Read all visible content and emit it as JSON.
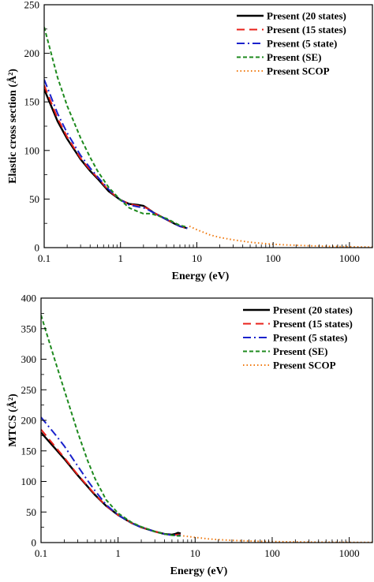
{
  "chart_data": [
    {
      "type": "line",
      "title": "",
      "xlabel": "Energy (eV)",
      "ylabel": "Elastic cross section (Å²)",
      "x_scale": "log",
      "xlim": [
        0.1,
        2000
      ],
      "ylim": [
        0,
        250
      ],
      "x_ticks": [
        0.1,
        1,
        10,
        100,
        1000
      ],
      "x_tick_labels": [
        "0.1",
        "1",
        "10",
        "100",
        "1000"
      ],
      "y_ticks": [
        0,
        50,
        100,
        150,
        200,
        250
      ],
      "y_tick_labels": [
        "0",
        "50",
        "100",
        "150",
        "200",
        "250"
      ],
      "legend_position": "top-right",
      "series": [
        {
          "name": "Present (20 states)",
          "color": "#000000",
          "dash": "solid",
          "x": [
            0.1,
            0.15,
            0.2,
            0.3,
            0.4,
            0.5,
            0.7,
            1.0,
            1.3,
            1.7,
            2.0,
            2.3,
            2.7,
            3.2,
            4.0,
            5.0,
            6.0,
            7.5
          ],
          "y": [
            163,
            130,
            112,
            91,
            79,
            71,
            58,
            49,
            45,
            44,
            43,
            40,
            36,
            33,
            29,
            25,
            22,
            20
          ]
        },
        {
          "name": "Present (15 states)",
          "color": "#e8201a",
          "dash": "dash",
          "x": [
            0.1,
            0.15,
            0.2,
            0.3,
            0.4,
            0.5,
            0.7,
            1.0,
            1.3,
            1.7,
            2.0,
            2.3,
            2.7,
            3.2,
            4.0,
            5.0,
            6.0,
            7.5
          ],
          "y": [
            167,
            133,
            114,
            92,
            80,
            72,
            59,
            49,
            45,
            43,
            42,
            40,
            36,
            33,
            29,
            25,
            22,
            20
          ]
        },
        {
          "name": "Present (5 state)",
          "color": "#1a22cc",
          "dash": "dashdot",
          "x": [
            0.1,
            0.15,
            0.2,
            0.3,
            0.4,
            0.5,
            0.7,
            1.0,
            1.3,
            1.7,
            2.0,
            2.3,
            2.7,
            3.2,
            4.0,
            5.0,
            6.0,
            7.5
          ],
          "y": [
            173,
            138,
            118,
            95,
            82,
            73,
            60,
            49,
            44,
            42,
            41,
            39,
            36,
            33,
            29,
            25,
            22,
            20
          ]
        },
        {
          "name": "Present (SE)",
          "color": "#1e8a1e",
          "dash": "shortdash",
          "x": [
            0.1,
            0.15,
            0.2,
            0.3,
            0.4,
            0.5,
            0.7,
            1.0,
            1.3,
            1.7,
            2.0,
            2.5,
            3.0,
            4.0,
            5.0,
            6.0,
            7.5
          ],
          "y": [
            227,
            175,
            146,
            113,
            93,
            79,
            62,
            49,
            41,
            37,
            35,
            35,
            33,
            30,
            26,
            23,
            21
          ]
        },
        {
          "name": "Present SCOP",
          "color": "#f07a10",
          "dash": "dot",
          "x": [
            8,
            10,
            15,
            20,
            30,
            50,
            70,
            100,
            150,
            200,
            300,
            500,
            700,
            1000,
            1500,
            2000
          ],
          "y": [
            22,
            18.5,
            13,
            10.5,
            8,
            5.5,
            4.5,
            3.5,
            2.8,
            2.4,
            1.9,
            1.4,
            1.1,
            0.9,
            0.7,
            0.6
          ]
        }
      ]
    },
    {
      "type": "line",
      "title": "",
      "xlabel": "Energy (eV)",
      "ylabel": "MTCS (Å²)",
      "x_scale": "log",
      "xlim": [
        0.1,
        2000
      ],
      "ylim": [
        0,
        400
      ],
      "x_ticks": [
        0.1,
        1,
        10,
        100,
        1000
      ],
      "x_tick_labels": [
        "0.1",
        "1",
        "10",
        "100",
        "1000"
      ],
      "y_ticks": [
        0,
        50,
        100,
        150,
        200,
        250,
        300,
        350,
        400
      ],
      "y_tick_labels": [
        "0",
        "50",
        "100",
        "150",
        "200",
        "250",
        "300",
        "350",
        "400"
      ],
      "legend_position": "top-right",
      "series": [
        {
          "name": "Present (20 states)",
          "color": "#000000",
          "dash": "solid",
          "x": [
            0.1,
            0.15,
            0.2,
            0.3,
            0.4,
            0.5,
            0.7,
            1.0,
            1.5,
            2.0,
            3.0,
            4.0,
            5.0,
            5.5,
            6.0,
            6.5
          ],
          "y": [
            180,
            155,
            137,
            110,
            92,
            78,
            60,
            45,
            32,
            25,
            18,
            14,
            13,
            14,
            16,
            15
          ]
        },
        {
          "name": "Present (15 states)",
          "color": "#e8201a",
          "dash": "dash",
          "x": [
            0.1,
            0.15,
            0.2,
            0.3,
            0.4,
            0.5,
            0.7,
            1.0,
            1.5,
            2.0,
            3.0,
            4.0,
            5.0,
            6.0,
            6.5
          ],
          "y": [
            185,
            158,
            139,
            111,
            93,
            79,
            60,
            45,
            32,
            25,
            18,
            14,
            12,
            13,
            13
          ]
        },
        {
          "name": "Present (5  states)",
          "color": "#1a22cc",
          "dash": "dashdot",
          "x": [
            0.1,
            0.15,
            0.2,
            0.3,
            0.4,
            0.5,
            0.7,
            1.0,
            1.5,
            2.0,
            3.0,
            4.0,
            5.0,
            6.0,
            6.5
          ],
          "y": [
            205,
            178,
            158,
            125,
            102,
            85,
            62,
            45,
            32,
            25,
            18,
            14,
            12,
            12,
            12
          ]
        },
        {
          "name": "Present (SE)",
          "color": "#1e8a1e",
          "dash": "shortdash",
          "x": [
            0.1,
            0.15,
            0.2,
            0.3,
            0.4,
            0.5,
            0.7,
            1.0,
            1.5,
            2.0,
            3.0,
            4.0,
            5.0,
            6.0,
            6.5
          ],
          "y": [
            372,
            300,
            250,
            180,
            135,
            105,
            70,
            48,
            33,
            26,
            18,
            14,
            12,
            11,
            11
          ]
        },
        {
          "name": "Present SCOP",
          "color": "#f07a10",
          "dash": "dot",
          "x": [
            7,
            10,
            15,
            20,
            30,
            50,
            70,
            100,
            150,
            200,
            300,
            500,
            700,
            1000,
            1500,
            2000
          ],
          "y": [
            11,
            8.5,
            6,
            4.8,
            3.6,
            2.6,
            2.1,
            1.7,
            1.3,
            1.1,
            0.9,
            0.7,
            0.55,
            0.45,
            0.35,
            0.3
          ]
        }
      ]
    }
  ]
}
